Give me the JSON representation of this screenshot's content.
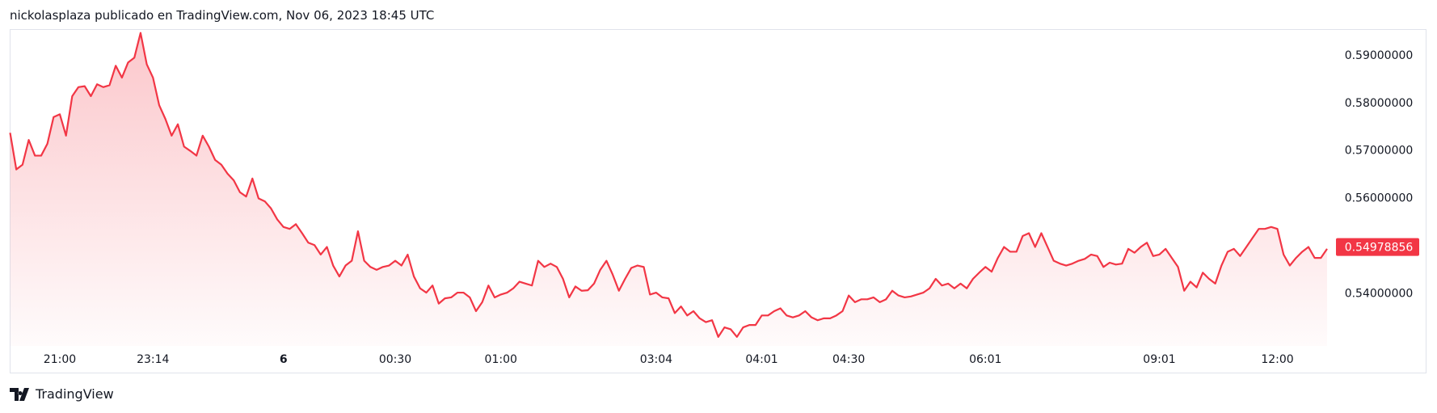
{
  "header": {
    "text": "nickolasplaza publicado en TradingView.com, Nov 06, 2023 18:45 UTC"
  },
  "footer": {
    "brand": "TradingView"
  },
  "chart_data": {
    "type": "area",
    "color": "#f23645",
    "last_price": {
      "value": 0.54978856,
      "label": "0.54978856"
    },
    "values": [
      0.5738,
      0.5661,
      0.5671,
      0.5723,
      0.569,
      0.569,
      0.5715,
      0.5771,
      0.5777,
      0.5732,
      0.5815,
      0.5834,
      0.5836,
      0.5815,
      0.584,
      0.5834,
      0.5838,
      0.5879,
      0.5854,
      0.5886,
      0.5896,
      0.5948,
      0.5882,
      0.5854,
      0.5796,
      0.5767,
      0.5732,
      0.5756,
      0.5709,
      0.57,
      0.569,
      0.5732,
      0.5709,
      0.5681,
      0.5671,
      0.5652,
      0.5638,
      0.5613,
      0.5604,
      0.5642,
      0.56,
      0.5594,
      0.5579,
      0.5556,
      0.554,
      0.5536,
      0.5546,
      0.5527,
      0.5507,
      0.5502,
      0.5482,
      0.5498,
      0.5459,
      0.5436,
      0.5459,
      0.5469,
      0.5531,
      0.5469,
      0.5456,
      0.545,
      0.5456,
      0.5459,
      0.5469,
      0.5459,
      0.5482,
      0.5436,
      0.5411,
      0.5402,
      0.5417,
      0.5379,
      0.539,
      0.5392,
      0.5402,
      0.5402,
      0.5392,
      0.5363,
      0.5382,
      0.5417,
      0.5392,
      0.5398,
      0.5402,
      0.5411,
      0.5425,
      0.5421,
      0.5417,
      0.5469,
      0.5456,
      0.5463,
      0.5456,
      0.5431,
      0.5392,
      0.5415,
      0.5406,
      0.5407,
      0.5421,
      0.545,
      0.5469,
      0.544,
      0.5406,
      0.5431,
      0.5454,
      0.5459,
      0.5456,
      0.5398,
      0.5402,
      0.5392,
      0.539,
      0.5359,
      0.5373,
      0.5354,
      0.5363,
      0.5348,
      0.534,
      0.5344,
      0.5309,
      0.5329,
      0.5325,
      0.5309,
      0.5329,
      0.5334,
      0.5334,
      0.5354,
      0.5354,
      0.5363,
      0.5369,
      0.5354,
      0.535,
      0.5354,
      0.5363,
      0.535,
      0.5344,
      0.5348,
      0.5348,
      0.5354,
      0.5363,
      0.5396,
      0.5382,
      0.5388,
      0.5388,
      0.5392,
      0.5382,
      0.5388,
      0.5406,
      0.5396,
      0.5392,
      0.5394,
      0.5398,
      0.5402,
      0.5411,
      0.5431,
      0.5417,
      0.5421,
      0.5411,
      0.5421,
      0.5411,
      0.5431,
      0.5444,
      0.5456,
      0.5446,
      0.5475,
      0.5498,
      0.5488,
      0.5488,
      0.5521,
      0.5527,
      0.5498,
      0.5527,
      0.5498,
      0.5469,
      0.5463,
      0.5459,
      0.5463,
      0.5469,
      0.5473,
      0.5482,
      0.5479,
      0.5456,
      0.5465,
      0.5461,
      0.5463,
      0.5494,
      0.5486,
      0.5498,
      0.5507,
      0.5479,
      0.5482,
      0.5494,
      0.5475,
      0.5456,
      0.5406,
      0.5425,
      0.5413,
      0.5444,
      0.5431,
      0.5421,
      0.5459,
      0.5488,
      0.5494,
      0.5479,
      0.5498,
      0.5517,
      0.5536,
      0.5536,
      0.554,
      0.5536,
      0.5482,
      0.5459,
      0.5475,
      0.5488,
      0.5498,
      0.5475,
      0.5475,
      0.5494
    ],
    "xticks": [
      {
        "value": 8,
        "label": "21:00"
      },
      {
        "value": 23,
        "label": "23:14"
      },
      {
        "value": 44,
        "label": "6",
        "bold": true
      },
      {
        "value": 62,
        "label": "00:30"
      },
      {
        "value": 79,
        "label": "01:00"
      },
      {
        "value": 104,
        "label": "03:04"
      },
      {
        "value": 121,
        "label": "04:01"
      },
      {
        "value": 135,
        "label": "04:30"
      },
      {
        "value": 157,
        "label": "06:01"
      },
      {
        "value": 185,
        "label": "09:01"
      },
      {
        "value": 204,
        "label": "12:00"
      }
    ],
    "ylim": [
      0.529,
      0.5956
    ],
    "yticks": [
      {
        "value": 0.54,
        "label": "0.54000000"
      },
      {
        "value": 0.56,
        "label": "0.56000000"
      },
      {
        "value": 0.57,
        "label": "0.57000000"
      },
      {
        "value": 0.58,
        "label": "0.58000000"
      },
      {
        "value": 0.59,
        "label": "0.59000000"
      }
    ]
  }
}
